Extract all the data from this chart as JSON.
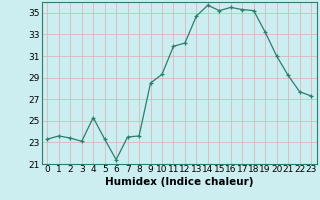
{
  "x": [
    0,
    1,
    2,
    3,
    4,
    5,
    6,
    7,
    8,
    9,
    10,
    11,
    12,
    13,
    14,
    15,
    16,
    17,
    18,
    19,
    20,
    21,
    22,
    23
  ],
  "y": [
    23.3,
    23.6,
    23.4,
    23.1,
    25.3,
    23.3,
    21.4,
    23.5,
    23.6,
    28.5,
    29.3,
    31.9,
    32.2,
    34.7,
    35.7,
    35.2,
    35.5,
    35.3,
    35.2,
    33.2,
    31.0,
    29.2,
    27.7,
    27.3
  ],
  "xlabel": "Humidex (Indice chaleur)",
  "ylim": [
    21,
    36
  ],
  "xlim": [
    -0.5,
    23.5
  ],
  "yticks": [
    21,
    23,
    25,
    27,
    29,
    31,
    33,
    35
  ],
  "xticks": [
    0,
    1,
    2,
    3,
    4,
    5,
    6,
    7,
    8,
    9,
    10,
    11,
    12,
    13,
    14,
    15,
    16,
    17,
    18,
    19,
    20,
    21,
    22,
    23
  ],
  "line_color": "#2e7d6e",
  "marker": "+",
  "bg_color": "#cceef0",
  "grid_color": "#d8b8b8",
  "tick_fontsize": 6.5,
  "label_fontsize": 7.5
}
